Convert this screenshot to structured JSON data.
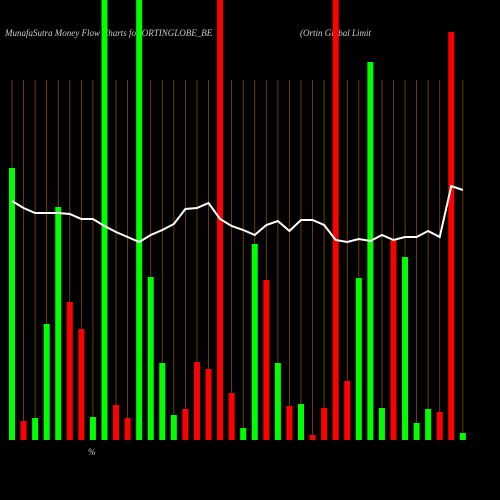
{
  "chart_data": {
    "type": "bar",
    "title": "MunafaSutra  Money Flow  Charts for ORTINGLOBE_BE",
    "subtitle": "(Ortin  Global Limit",
    "note": "%",
    "categories": [
      null,
      null,
      null,
      null,
      null,
      null,
      null,
      null,
      null,
      null,
      null,
      null,
      null,
      null,
      null,
      null,
      null,
      null,
      null,
      null,
      null,
      null,
      null,
      null,
      null,
      null,
      null,
      null,
      null,
      null,
      null,
      null,
      null,
      null,
      null,
      null,
      null,
      null,
      null,
      null
    ],
    "ylim": [
      0,
      440
    ],
    "series": [
      {
        "colors": [
          "#00ff00",
          "#ff0000",
          "#00ff00",
          "#00ff00",
          "#00ff00",
          "#ff0000",
          "#ff0000",
          "#00ff00",
          "#00ff00",
          "#ff0000",
          "#ff0000",
          "#00ff00",
          "#00ff00",
          "#00ff00",
          "#00ff00",
          "#ff0000",
          "#ff0000",
          "#ff0000",
          "#ff0000",
          "#ff0000",
          "#00ff00",
          "#00ff00",
          "#ff0000",
          "#00ff00",
          "#ff0000",
          "#00ff00",
          "#ff0000",
          "#ff0000",
          "#ff0000",
          "#ff0000",
          "#00ff00",
          "#00ff00",
          "#00ff00",
          "#ff0000",
          "#00ff00",
          "#00ff00",
          "#00ff00",
          "#ff0000",
          "#ff0000",
          "#00ff00"
        ],
        "values": [
          272,
          19,
          22,
          116,
          233,
          138,
          111,
          23,
          440,
          35,
          22,
          440,
          163,
          77,
          25,
          31,
          78,
          71,
          440,
          47,
          12,
          196,
          160,
          77,
          34,
          36,
          5,
          32,
          440,
          59,
          162,
          378,
          32,
          200,
          183,
          17,
          31,
          28,
          408,
          7
        ]
      },
      {
        "color": "#ffffff",
        "values": [
          239,
          232,
          227,
          227,
          227,
          226,
          221,
          221,
          214,
          208,
          203,
          198,
          205,
          210,
          216,
          231,
          232,
          237,
          221,
          214,
          210,
          205,
          215,
          219,
          209,
          220,
          220,
          215,
          200,
          198,
          201,
          199,
          205,
          200,
          203,
          203,
          209,
          203,
          254,
          250
        ]
      }
    ]
  }
}
